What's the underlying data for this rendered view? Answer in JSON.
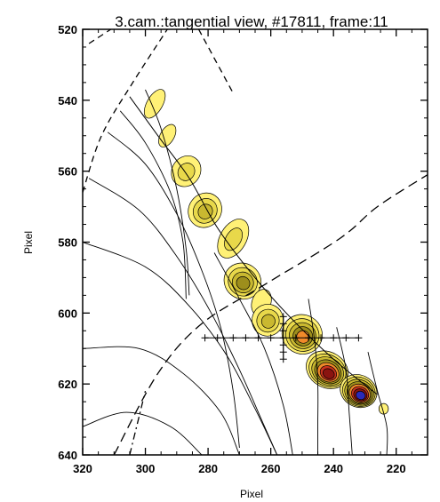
{
  "chart_data": {
    "type": "contour",
    "title": "3.cam.:tangential view, #17811, frame:11",
    "xlabel": "Pixel",
    "ylabel": "Pixel",
    "xlim": [
      320,
      210
    ],
    "ylim": [
      640,
      520
    ],
    "x_ticks": [
      320,
      300,
      280,
      260,
      240,
      220
    ],
    "y_ticks": [
      520,
      540,
      560,
      580,
      600,
      620,
      640
    ],
    "x_ticks_minor": [
      315,
      310,
      305,
      295,
      290,
      285,
      275,
      270,
      265,
      255,
      250,
      245,
      235,
      230,
      225,
      215
    ],
    "y_ticks_minor": [
      525,
      530,
      535,
      545,
      550,
      555,
      565,
      570,
      575,
      585,
      590,
      595,
      605,
      610,
      615,
      625,
      630,
      635
    ],
    "grid": false,
    "colors": {
      "level1": "#fff176",
      "level2": "#e8d84a",
      "level3": "#c9b830",
      "level4": "#9d8e1c",
      "orange": "#f08a2a",
      "red": "#c8321e",
      "darkred": "#8a1410",
      "blue": "#2a2ab8"
    },
    "blobs": [
      {
        "x": 297,
        "y": 541,
        "rx": 2.5,
        "ry": 4.5,
        "rot": 30,
        "levels": 1
      },
      {
        "x": 293,
        "y": 550,
        "rx": 2.2,
        "ry": 3.5,
        "rot": 30,
        "levels": 1
      },
      {
        "x": 287,
        "y": 560,
        "rx": 4.5,
        "ry": 4.5,
        "rot": 35,
        "levels": 2
      },
      {
        "x": 281,
        "y": 571,
        "rx": 5.2,
        "ry": 5,
        "rot": 35,
        "levels": 3
      },
      {
        "x": 272,
        "y": 579,
        "rx": 4.2,
        "ry": 6,
        "rot": 30,
        "levels": 2
      },
      {
        "x": 269,
        "y": 591,
        "rx": 6,
        "ry": 5,
        "rot": 35,
        "levels": 4
      },
      {
        "x": 263,
        "y": 597,
        "rx": 3,
        "ry": 3.8,
        "rot": 20,
        "levels": 1
      },
      {
        "x": 261,
        "y": 602,
        "rx": 5,
        "ry": 4.5,
        "rot": 20,
        "levels": 3
      },
      {
        "x": 250,
        "y": 606,
        "rx": 6.5,
        "ry": 5.5,
        "rot": 30,
        "levels": 5
      },
      {
        "x": 242,
        "y": 616,
        "rx": 7,
        "ry": 5,
        "rot": 30,
        "levels": 7
      },
      {
        "x": 232,
        "y": 622,
        "rx": 6,
        "ry": 4.5,
        "rot": 25,
        "levels": 8
      },
      {
        "x": 224,
        "y": 627,
        "rx": 1.5,
        "ry": 1.5,
        "rot": 0,
        "levels": 1
      }
    ],
    "profile_curve": [
      [
        305,
        539
      ],
      [
        296,
        550
      ],
      [
        286,
        562
      ],
      [
        277,
        576
      ],
      [
        266,
        589
      ],
      [
        254,
        601
      ],
      [
        240,
        613
      ],
      [
        226,
        623
      ]
    ],
    "lines_of_sight": [
      [
        [
          300,
          537
        ],
        [
          295,
          548
        ],
        [
          290,
          565
        ],
        [
          287,
          582
        ],
        [
          286,
          595
        ]
      ],
      [
        [
          308,
          543
        ],
        [
          300,
          552
        ],
        [
          292,
          566
        ],
        [
          288,
          580
        ],
        [
          287,
          596
        ]
      ],
      [
        [
          312,
          549
        ],
        [
          300,
          558
        ],
        [
          290,
          572
        ],
        [
          282,
          588
        ],
        [
          276,
          604
        ],
        [
          272,
          622
        ],
        [
          270,
          638
        ]
      ],
      [
        [
          318,
          562
        ],
        [
          302,
          571
        ],
        [
          290,
          584
        ],
        [
          279,
          600
        ],
        [
          270,
          616
        ],
        [
          262,
          632
        ],
        [
          258,
          640
        ]
      ],
      [
        [
          320,
          580
        ],
        [
          300,
          587
        ],
        [
          286,
          598
        ],
        [
          274,
          612
        ],
        [
          265,
          627
        ],
        [
          258,
          640
        ]
      ],
      [
        [
          320,
          610
        ],
        [
          302,
          610
        ],
        [
          288,
          617
        ],
        [
          276,
          628
        ],
        [
          270,
          640
        ]
      ],
      [
        [
          320,
          632
        ],
        [
          306,
          628
        ],
        [
          292,
          632
        ],
        [
          282,
          640
        ]
      ],
      [
        [
          248,
          596
        ],
        [
          246,
          608
        ],
        [
          245,
          620
        ],
        [
          245,
          632
        ],
        [
          245,
          640
        ]
      ],
      [
        [
          239,
          604
        ],
        [
          236,
          616
        ],
        [
          235,
          628
        ],
        [
          234,
          640
        ]
      ],
      [
        [
          229,
          611
        ],
        [
          226,
          622
        ],
        [
          223,
          632
        ],
        [
          223,
          640
        ]
      ],
      [
        [
          278,
          583
        ],
        [
          270,
          596
        ],
        [
          262,
          610
        ],
        [
          256,
          626
        ],
        [
          253,
          640
        ]
      ]
    ],
    "dashed_inner": [
      [
        320,
        566
      ],
      [
        314,
        550
      ],
      [
        304,
        535
      ],
      [
        293,
        520
      ]
    ],
    "dashed_upper": [
      [
        318,
        524
      ],
      [
        311,
        520
      ]
    ],
    "dashed_center": [
      [
        283,
        520
      ],
      [
        272,
        538
      ]
    ],
    "dashed_outer": [
      [
        310,
        640
      ],
      [
        296,
        617
      ],
      [
        282,
        603
      ],
      [
        262,
        592
      ],
      [
        238,
        579
      ],
      [
        226,
        570
      ],
      [
        210,
        561
      ]
    ],
    "dash_dot_outer": [
      [
        305,
        640
      ],
      [
        300,
        622
      ]
    ],
    "crosshair_points": [
      [
        281,
        607
      ],
      [
        277,
        607
      ],
      [
        272,
        607
      ],
      [
        268,
        607
      ],
      [
        264,
        607
      ],
      [
        260,
        607
      ],
      [
        256,
        607
      ],
      [
        252,
        607
      ],
      [
        248,
        607
      ],
      [
        244,
        607
      ],
      [
        240,
        607
      ],
      [
        236,
        607
      ],
      [
        232,
        607
      ],
      [
        256,
        601
      ],
      [
        256,
        603
      ],
      [
        256,
        605
      ],
      [
        256,
        609
      ],
      [
        256,
        611
      ],
      [
        256,
        613
      ]
    ]
  }
}
